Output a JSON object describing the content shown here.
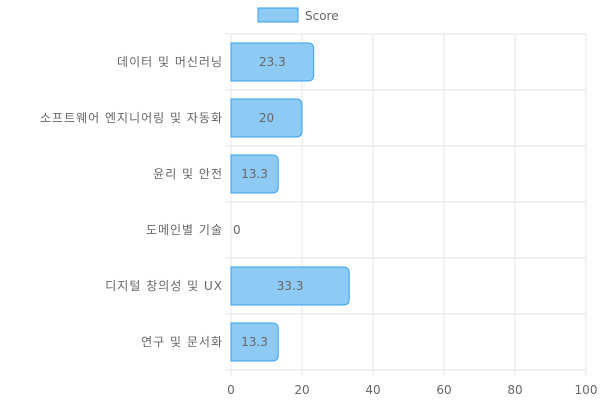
{
  "chart_data": {
    "type": "bar",
    "orientation": "horizontal",
    "categories": [
      "데이터 및 머신러닝",
      "소프트웨어 엔지니어링 및 자동화",
      "윤리 및 안전",
      "도메인별 기술",
      "디지털 창의성 및 UX",
      "연구 및 문서화"
    ],
    "series": [
      {
        "name": "Score",
        "values": [
          23.3,
          20,
          13.3,
          0,
          33.3,
          13.3
        ]
      }
    ],
    "data_labels": [
      "23.3",
      "20",
      "13.3",
      "0",
      "33.3",
      "13.3"
    ],
    "x_ticks": [
      0,
      20,
      40,
      60,
      80,
      100
    ],
    "xlim": [
      0,
      100
    ],
    "grid": true,
    "legend": "top",
    "colors": {
      "bar_fill": "#8ecbf4",
      "bar_stroke": "#36a2eb",
      "grid": "#e5e5e5",
      "text": "#666666"
    }
  }
}
